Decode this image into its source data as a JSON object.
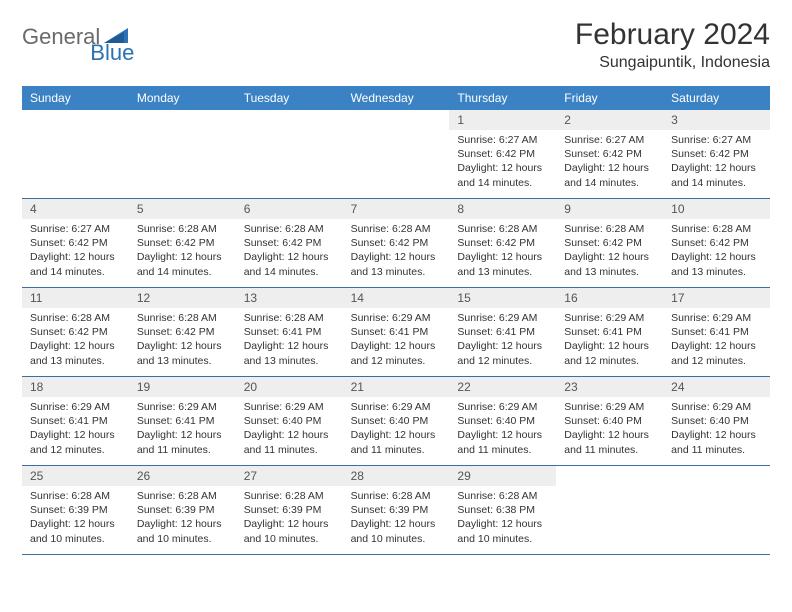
{
  "logo": {
    "text1": "General",
    "text2": "Blue"
  },
  "header": {
    "month": "February 2024",
    "location": "Sungaipuntik, Indonesia"
  },
  "colors": {
    "header_bg": "#3b82c4",
    "header_text": "#ffffff",
    "daynum_bg": "#eeeeee",
    "week_border": "#3b6fa0",
    "body_text": "#333333",
    "logo_gray": "#6a6a6a",
    "logo_blue": "#2a72b5"
  },
  "dayNames": [
    "Sunday",
    "Monday",
    "Tuesday",
    "Wednesday",
    "Thursday",
    "Friday",
    "Saturday"
  ],
  "weeks": [
    [
      null,
      null,
      null,
      null,
      {
        "n": "1",
        "sr": "6:27 AM",
        "ss": "6:42 PM",
        "dl": "12 hours and 14 minutes."
      },
      {
        "n": "2",
        "sr": "6:27 AM",
        "ss": "6:42 PM",
        "dl": "12 hours and 14 minutes."
      },
      {
        "n": "3",
        "sr": "6:27 AM",
        "ss": "6:42 PM",
        "dl": "12 hours and 14 minutes."
      }
    ],
    [
      {
        "n": "4",
        "sr": "6:27 AM",
        "ss": "6:42 PM",
        "dl": "12 hours and 14 minutes."
      },
      {
        "n": "5",
        "sr": "6:28 AM",
        "ss": "6:42 PM",
        "dl": "12 hours and 14 minutes."
      },
      {
        "n": "6",
        "sr": "6:28 AM",
        "ss": "6:42 PM",
        "dl": "12 hours and 14 minutes."
      },
      {
        "n": "7",
        "sr": "6:28 AM",
        "ss": "6:42 PM",
        "dl": "12 hours and 13 minutes."
      },
      {
        "n": "8",
        "sr": "6:28 AM",
        "ss": "6:42 PM",
        "dl": "12 hours and 13 minutes."
      },
      {
        "n": "9",
        "sr": "6:28 AM",
        "ss": "6:42 PM",
        "dl": "12 hours and 13 minutes."
      },
      {
        "n": "10",
        "sr": "6:28 AM",
        "ss": "6:42 PM",
        "dl": "12 hours and 13 minutes."
      }
    ],
    [
      {
        "n": "11",
        "sr": "6:28 AM",
        "ss": "6:42 PM",
        "dl": "12 hours and 13 minutes."
      },
      {
        "n": "12",
        "sr": "6:28 AM",
        "ss": "6:42 PM",
        "dl": "12 hours and 13 minutes."
      },
      {
        "n": "13",
        "sr": "6:28 AM",
        "ss": "6:41 PM",
        "dl": "12 hours and 13 minutes."
      },
      {
        "n": "14",
        "sr": "6:29 AM",
        "ss": "6:41 PM",
        "dl": "12 hours and 12 minutes."
      },
      {
        "n": "15",
        "sr": "6:29 AM",
        "ss": "6:41 PM",
        "dl": "12 hours and 12 minutes."
      },
      {
        "n": "16",
        "sr": "6:29 AM",
        "ss": "6:41 PM",
        "dl": "12 hours and 12 minutes."
      },
      {
        "n": "17",
        "sr": "6:29 AM",
        "ss": "6:41 PM",
        "dl": "12 hours and 12 minutes."
      }
    ],
    [
      {
        "n": "18",
        "sr": "6:29 AM",
        "ss": "6:41 PM",
        "dl": "12 hours and 12 minutes."
      },
      {
        "n": "19",
        "sr": "6:29 AM",
        "ss": "6:41 PM",
        "dl": "12 hours and 11 minutes."
      },
      {
        "n": "20",
        "sr": "6:29 AM",
        "ss": "6:40 PM",
        "dl": "12 hours and 11 minutes."
      },
      {
        "n": "21",
        "sr": "6:29 AM",
        "ss": "6:40 PM",
        "dl": "12 hours and 11 minutes."
      },
      {
        "n": "22",
        "sr": "6:29 AM",
        "ss": "6:40 PM",
        "dl": "12 hours and 11 minutes."
      },
      {
        "n": "23",
        "sr": "6:29 AM",
        "ss": "6:40 PM",
        "dl": "12 hours and 11 minutes."
      },
      {
        "n": "24",
        "sr": "6:29 AM",
        "ss": "6:40 PM",
        "dl": "12 hours and 11 minutes."
      }
    ],
    [
      {
        "n": "25",
        "sr": "6:28 AM",
        "ss": "6:39 PM",
        "dl": "12 hours and 10 minutes."
      },
      {
        "n": "26",
        "sr": "6:28 AM",
        "ss": "6:39 PM",
        "dl": "12 hours and 10 minutes."
      },
      {
        "n": "27",
        "sr": "6:28 AM",
        "ss": "6:39 PM",
        "dl": "12 hours and 10 minutes."
      },
      {
        "n": "28",
        "sr": "6:28 AM",
        "ss": "6:39 PM",
        "dl": "12 hours and 10 minutes."
      },
      {
        "n": "29",
        "sr": "6:28 AM",
        "ss": "6:38 PM",
        "dl": "12 hours and 10 minutes."
      },
      null,
      null
    ]
  ],
  "labels": {
    "sunrise": "Sunrise:",
    "sunset": "Sunset:",
    "daylight": "Daylight:"
  }
}
